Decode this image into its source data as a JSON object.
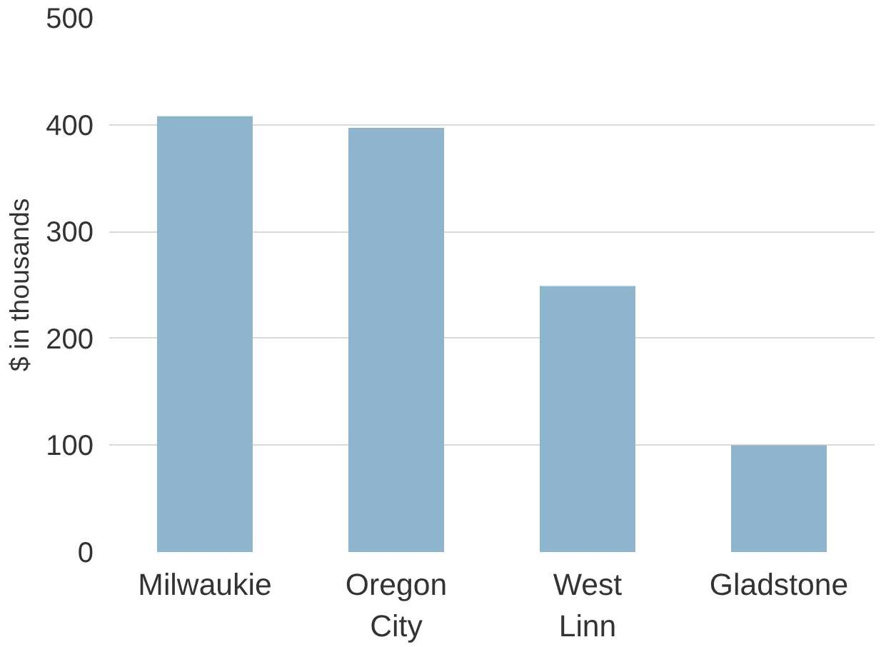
{
  "chart_data": {
    "type": "bar",
    "ylabel": "$ in thousands",
    "categories": [
      "Milwaukie",
      "Oregon City",
      "West Linn",
      "Gladstone"
    ],
    "values": [
      408,
      397,
      249,
      100
    ],
    "color": "#8db5cd",
    "ylim": [
      0,
      500
    ],
    "yticks": [
      0,
      100,
      200,
      300,
      400,
      500
    ],
    "grid": "y"
  }
}
